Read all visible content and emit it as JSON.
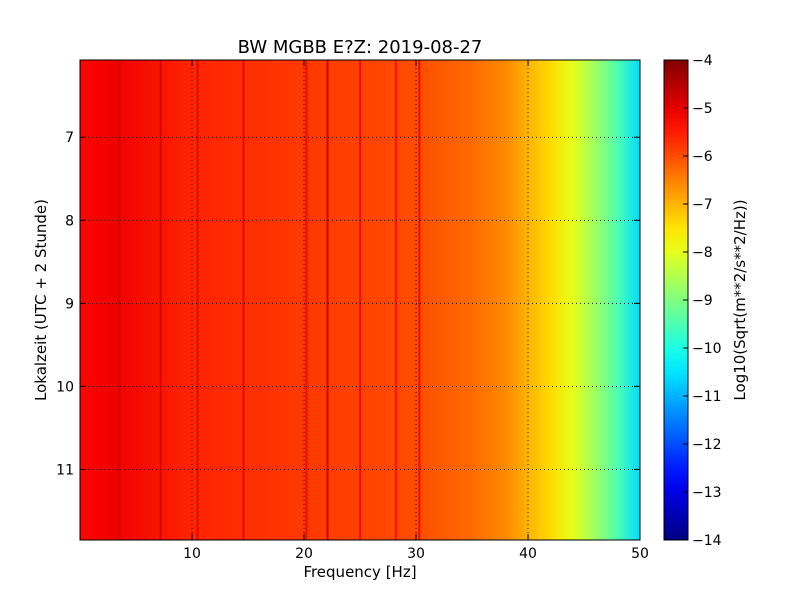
{
  "chart_data": {
    "type": "heatmap",
    "title": "BW MGBB E?Z: 2019-08-27",
    "xlabel": "Frequency [Hz]",
    "ylabel": "Lokalzeit (UTC + 2 Stunde)",
    "xlim": [
      0,
      50
    ],
    "ylim": [
      6.07,
      11.85
    ],
    "y_inverted": true,
    "x_ticks": [
      10,
      20,
      30,
      40,
      50
    ],
    "y_ticks": [
      7,
      8,
      9,
      10,
      11
    ],
    "grid": true,
    "colorbar": {
      "label": "Log10(Sqrt(m**2/s**2/Hz))",
      "range": [
        -14,
        -4
      ],
      "ticks": [
        -4,
        -5,
        -6,
        -7,
        -8,
        -9,
        -10,
        -11,
        -12,
        -13,
        -14
      ],
      "colormap": "jet"
    },
    "background_level_profile": [
      {
        "freq": 0,
        "value": -5.3
      },
      {
        "freq": 3,
        "value": -5.1
      },
      {
        "freq": 10,
        "value": -5.6
      },
      {
        "freq": 20,
        "value": -5.8
      },
      {
        "freq": 30,
        "value": -6.0
      },
      {
        "freq": 35,
        "value": -6.3
      },
      {
        "freq": 38,
        "value": -6.6
      },
      {
        "freq": 40,
        "value": -7.0
      },
      {
        "freq": 42,
        "value": -7.4
      },
      {
        "freq": 44,
        "value": -8.0
      },
      {
        "freq": 46,
        "value": -8.7
      },
      {
        "freq": 48,
        "value": -9.5
      },
      {
        "freq": 50,
        "value": -10.6
      }
    ],
    "spectral_lines": [
      {
        "freq": 3.5,
        "value": -4.7
      },
      {
        "freq": 7.2,
        "value": -4.8
      },
      {
        "freq": 10.5,
        "value": -4.9
      },
      {
        "freq": 14.6,
        "value": -5.0
      },
      {
        "freq": 20.2,
        "value": -5.2
      },
      {
        "freq": 22.1,
        "value": -4.6
      },
      {
        "freq": 25.0,
        "value": -5.2
      },
      {
        "freq": 28.2,
        "value": -5.3
      },
      {
        "freq": 30.3,
        "value": -5.0
      }
    ]
  }
}
